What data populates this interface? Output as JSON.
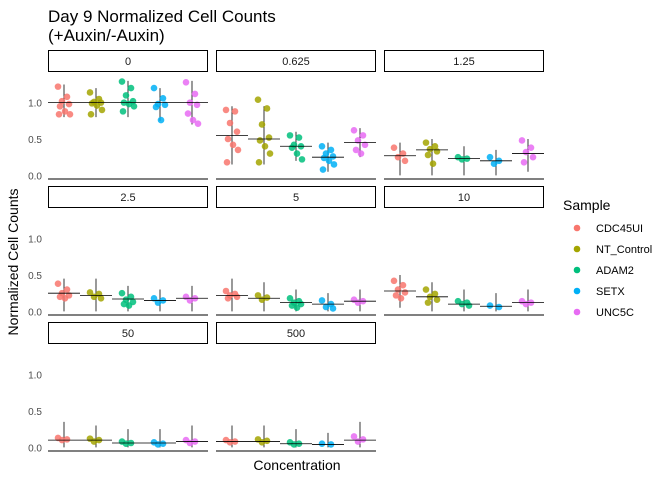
{
  "chart_data": {
    "type": "scatter",
    "title": "Day 9 Normalized Cell Counts",
    "subtitle": "(+Auxin/-Auxin)",
    "xlabel": "Concentration",
    "ylabel": "Normalized Cell Counts",
    "ylim": [
      -0.05,
      1.38
    ],
    "yticks": [
      "0.0",
      "0.5",
      "1.0"
    ],
    "legend": {
      "title": "Sample",
      "position": "right",
      "entries": [
        "CDC45UI",
        "NT_Control",
        "ADAM2",
        "SETX",
        "UNC5C"
      ],
      "colors": [
        "#F8766D",
        "#A3A500",
        "#00BF7D",
        "#00B0F6",
        "#E76BF3"
      ]
    },
    "facets": [
      {
        "label": "0",
        "groups": [
          {
            "sample": "CDC45UI",
            "mean": 1.0,
            "range": [
              0.8,
              1.25
            ],
            "points": [
              1.22,
              1.08,
              1.02,
              0.98,
              0.95,
              0.88,
              0.84,
              0.84
            ]
          },
          {
            "sample": "NT_Control",
            "mean": 1.0,
            "range": [
              0.8,
              1.2
            ],
            "points": [
              1.14,
              1.05,
              1.01,
              1.0,
              0.99,
              0.96,
              0.9,
              0.84
            ]
          },
          {
            "sample": "ADAM2",
            "mean": 1.0,
            "range": [
              0.8,
              1.3
            ],
            "points": [
              1.29,
              1.2,
              1.1,
              1.02,
              1.0,
              0.98,
              0.95,
              0.88
            ]
          },
          {
            "sample": "SETX",
            "mean": 1.0,
            "range": [
              0.75,
              1.2
            ],
            "points": [
              1.2,
              1.06,
              0.98,
              0.97,
              0.94,
              0.76
            ]
          },
          {
            "sample": "UNC5C",
            "mean": 1.0,
            "range": [
              0.7,
              1.3
            ],
            "points": [
              1.28,
              1.12,
              1.0,
              0.97,
              0.85,
              0.76,
              0.71
            ]
          }
        ]
      },
      {
        "label": "0.625",
        "groups": [
          {
            "sample": "CDC45UI",
            "mean": 0.55,
            "range": [
              0.15,
              0.95
            ],
            "points": [
              0.9,
              0.88,
              0.72,
              0.6,
              0.5,
              0.42,
              0.35,
              0.18
            ]
          },
          {
            "sample": "NT_Control",
            "mean": 0.5,
            "range": [
              0.15,
              0.95
            ],
            "points": [
              1.04,
              0.92,
              0.7,
              0.52,
              0.48,
              0.4,
              0.3,
              0.18
            ]
          },
          {
            "sample": "ADAM2",
            "mean": 0.4,
            "range": [
              0.2,
              0.6
            ],
            "points": [
              0.55,
              0.52,
              0.42,
              0.4,
              0.38,
              0.3,
              0.22
            ]
          },
          {
            "sample": "SETX",
            "mean": 0.25,
            "range": [
              0.05,
              0.45
            ],
            "points": [
              0.4,
              0.35,
              0.3,
              0.26,
              0.24,
              0.2,
              0.15,
              0.08
            ]
          },
          {
            "sample": "UNC5C",
            "mean": 0.45,
            "range": [
              0.25,
              0.65
            ],
            "points": [
              0.62,
              0.55,
              0.48,
              0.42,
              0.35,
              0.3
            ]
          }
        ]
      },
      {
        "label": "1.25",
        "groups": [
          {
            "sample": "CDC45UI",
            "mean": 0.27,
            "range": [
              0.0,
              0.45
            ],
            "points": [
              0.38,
              0.3,
              0.25,
              0.2
            ]
          },
          {
            "sample": "NT_Control",
            "mean": 0.35,
            "range": [
              0.0,
              0.5
            ],
            "points": [
              0.45,
              0.4,
              0.36,
              0.33,
              0.28,
              0.16
            ]
          },
          {
            "sample": "ADAM2",
            "mean": 0.23,
            "range": [
              0.0,
              0.4
            ],
            "points": [
              0.25,
              0.23,
              0.22
            ]
          },
          {
            "sample": "SETX",
            "mean": 0.2,
            "range": [
              0.0,
              0.35
            ],
            "points": [
              0.25,
              0.2,
              0.16
            ]
          },
          {
            "sample": "UNC5C",
            "mean": 0.3,
            "range": [
              0.05,
              0.5
            ],
            "points": [
              0.48,
              0.38,
              0.32,
              0.25,
              0.18
            ]
          }
        ]
      },
      {
        "label": "2.5",
        "groups": [
          {
            "sample": "CDC45UI",
            "mean": 0.25,
            "range": [
              0.0,
              0.45
            ],
            "points": [
              0.38,
              0.3,
              0.25,
              0.22,
              0.2,
              0.18
            ]
          },
          {
            "sample": "NT_Control",
            "mean": 0.22,
            "range": [
              0.0,
              0.45
            ],
            "points": [
              0.26,
              0.24,
              0.2,
              0.18
            ]
          },
          {
            "sample": "ADAM2",
            "mean": 0.17,
            "range": [
              0.0,
              0.35
            ],
            "points": [
              0.25,
              0.2,
              0.16,
              0.13,
              0.1,
              0.08
            ]
          },
          {
            "sample": "SETX",
            "mean": 0.15,
            "range": [
              0.0,
              0.3
            ],
            "points": [
              0.18,
              0.15,
              0.12
            ]
          },
          {
            "sample": "UNC5C",
            "mean": 0.18,
            "range": [
              0.0,
              0.35
            ],
            "points": [
              0.2,
              0.18,
              0.15
            ]
          }
        ]
      },
      {
        "label": "5",
        "groups": [
          {
            "sample": "CDC45UI",
            "mean": 0.22,
            "range": [
              0.0,
              0.45
            ],
            "points": [
              0.28,
              0.24,
              0.22,
              0.2,
              0.18
            ]
          },
          {
            "sample": "NT_Control",
            "mean": 0.18,
            "range": [
              0.0,
              0.4
            ],
            "points": [
              0.22,
              0.19,
              0.16
            ]
          },
          {
            "sample": "ADAM2",
            "mean": 0.12,
            "range": [
              0.0,
              0.3
            ],
            "points": [
              0.18,
              0.14,
              0.12,
              0.1,
              0.08,
              0.05
            ]
          },
          {
            "sample": "SETX",
            "mean": 0.1,
            "range": [
              0.0,
              0.25
            ],
            "points": [
              0.15,
              0.1,
              0.06,
              0.04
            ]
          },
          {
            "sample": "UNC5C",
            "mean": 0.14,
            "range": [
              0.0,
              0.3
            ],
            "points": [
              0.16,
              0.14,
              0.12
            ]
          }
        ]
      },
      {
        "label": "10",
        "groups": [
          {
            "sample": "CDC45UI",
            "mean": 0.28,
            "range": [
              0.05,
              0.5
            ],
            "points": [
              0.42,
              0.36,
              0.3,
              0.26,
              0.22,
              0.18
            ]
          },
          {
            "sample": "NT_Control",
            "mean": 0.2,
            "range": [
              0.0,
              0.4
            ],
            "points": [
              0.3,
              0.24,
              0.2,
              0.16,
              0.12
            ]
          },
          {
            "sample": "ADAM2",
            "mean": 0.1,
            "range": [
              0.0,
              0.3
            ],
            "points": [
              0.14,
              0.12,
              0.1,
              0.08
            ]
          },
          {
            "sample": "SETX",
            "mean": 0.07,
            "range": [
              0.0,
              0.25
            ],
            "points": [
              0.08,
              0.06
            ]
          },
          {
            "sample": "UNC5C",
            "mean": 0.12,
            "range": [
              0.0,
              0.3
            ],
            "points": [
              0.14,
              0.12,
              0.1
            ]
          }
        ]
      },
      {
        "label": "50",
        "groups": [
          {
            "sample": "CDC45UI",
            "mean": 0.1,
            "range": [
              0.0,
              0.35
            ],
            "points": [
              0.13,
              0.11,
              0.1
            ]
          },
          {
            "sample": "NT_Control",
            "mean": 0.1,
            "range": [
              0.0,
              0.3
            ],
            "points": [
              0.12,
              0.1,
              0.08
            ]
          },
          {
            "sample": "ADAM2",
            "mean": 0.06,
            "range": [
              0.0,
              0.25
            ],
            "points": [
              0.08,
              0.06,
              0.05
            ]
          },
          {
            "sample": "SETX",
            "mean": 0.06,
            "range": [
              0.0,
              0.25
            ],
            "points": [
              0.07,
              0.05,
              0.04
            ]
          },
          {
            "sample": "UNC5C",
            "mean": 0.08,
            "range": [
              0.0,
              0.3
            ],
            "points": [
              0.1,
              0.08,
              0.06
            ]
          }
        ]
      },
      {
        "label": "500",
        "groups": [
          {
            "sample": "CDC45UI",
            "mean": 0.08,
            "range": [
              0.0,
              0.3
            ],
            "points": [
              0.1,
              0.08,
              0.07
            ]
          },
          {
            "sample": "NT_Control",
            "mean": 0.08,
            "range": [
              0.0,
              0.3
            ],
            "points": [
              0.11,
              0.09,
              0.07
            ]
          },
          {
            "sample": "ADAM2",
            "mean": 0.05,
            "range": [
              0.0,
              0.25
            ],
            "points": [
              0.07,
              0.05,
              0.04
            ]
          },
          {
            "sample": "SETX",
            "mean": 0.04,
            "range": [
              0.0,
              0.2
            ],
            "points": [
              0.05,
              0.04
            ]
          },
          {
            "sample": "UNC5C",
            "mean": 0.1,
            "range": [
              0.0,
              0.35
            ],
            "points": [
              0.15,
              0.11,
              0.08
            ]
          }
        ]
      }
    ]
  }
}
